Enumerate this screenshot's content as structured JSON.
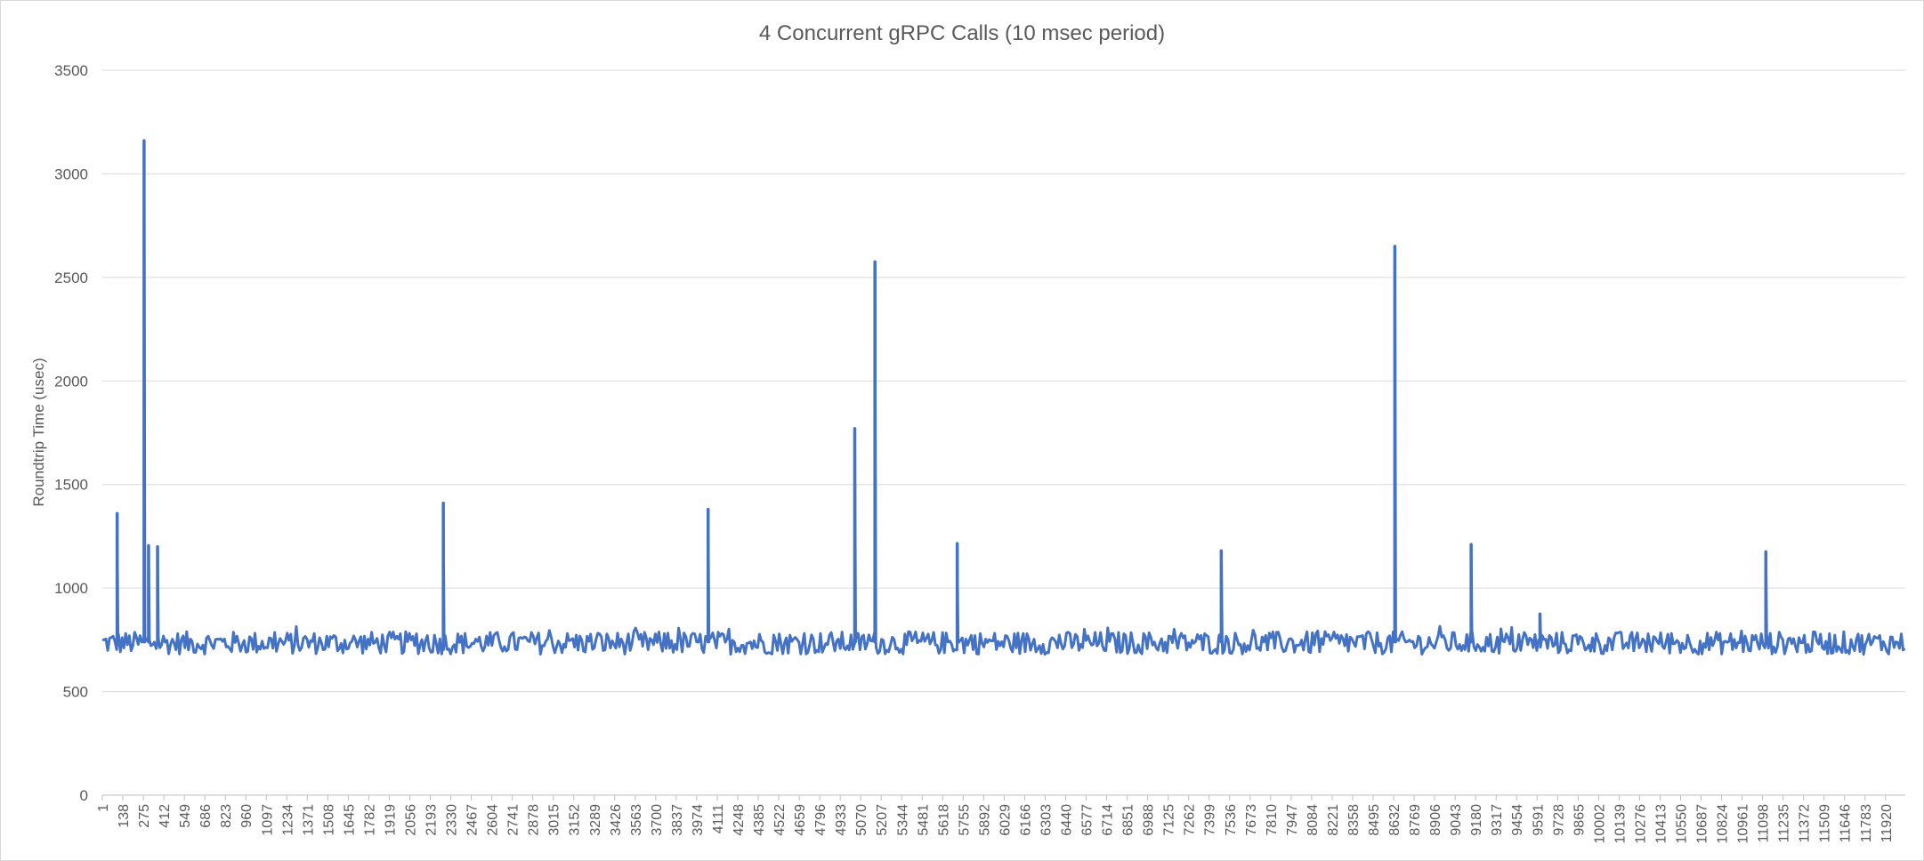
{
  "chart_data": {
    "type": "line",
    "title": "4 Concurrent gRPC Calls (10 msec period)",
    "ylabel": "Roundtrip Time (usec)",
    "xlabel": "",
    "ylim": [
      0,
      3500
    ],
    "y_ticks": [
      "0",
      "500",
      "1000",
      "1500",
      "2000",
      "2500",
      "3000",
      "3500"
    ],
    "xlim": [
      1,
      12052
    ],
    "x_ticks": [
      1,
      138,
      275,
      412,
      549,
      686,
      823,
      960,
      1097,
      1234,
      1371,
      1508,
      1645,
      1782,
      1919,
      2056,
      2193,
      2330,
      2467,
      2604,
      2741,
      2878,
      3015,
      3152,
      3289,
      3426,
      3563,
      3700,
      3837,
      3974,
      4111,
      4248,
      4385,
      4522,
      4659,
      4796,
      4933,
      5070,
      5207,
      5344,
      5481,
      5618,
      5755,
      5892,
      6029,
      6166,
      6303,
      6440,
      6577,
      6714,
      6851,
      6988,
      7125,
      7262,
      7399,
      7536,
      7673,
      7810,
      7947,
      8084,
      8221,
      8358,
      8495,
      8632,
      8769,
      8906,
      9043,
      9180,
      9317,
      9454,
      9591,
      9728,
      9865,
      10002,
      10139,
      10276,
      10413,
      10550,
      10687,
      10824,
      10961,
      11098,
      11235,
      11372,
      11509,
      11646,
      11783,
      11920
    ],
    "series": [
      {
        "color": "#4472c4",
        "baseline": {
          "min": 680,
          "max": 790
        },
        "spikes": [
          {
            "x": 100,
            "y": 1360
          },
          {
            "x": 280,
            "y": 3160
          },
          {
            "x": 310,
            "y": 1205
          },
          {
            "x": 370,
            "y": 1200
          },
          {
            "x": 2280,
            "y": 1410
          },
          {
            "x": 4050,
            "y": 1380
          },
          {
            "x": 5030,
            "y": 1770
          },
          {
            "x": 5165,
            "y": 2575
          },
          {
            "x": 5715,
            "y": 1215
          },
          {
            "x": 7480,
            "y": 1180
          },
          {
            "x": 8640,
            "y": 2650
          },
          {
            "x": 9150,
            "y": 1210
          },
          {
            "x": 9610,
            "y": 875
          },
          {
            "x": 11120,
            "y": 1175
          }
        ]
      }
    ],
    "grid": true,
    "legend": "none"
  }
}
